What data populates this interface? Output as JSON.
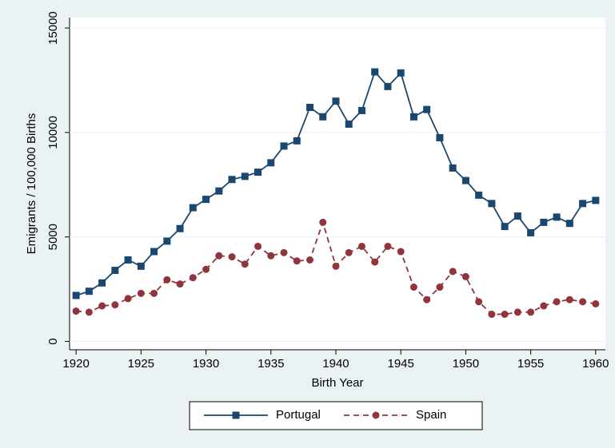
{
  "chart_data": {
    "type": "line",
    "x_label": "Birth Year",
    "y_label": "Emigrants / 100,000 Births",
    "x": [
      1920,
      1921,
      1922,
      1923,
      1924,
      1925,
      1926,
      1927,
      1928,
      1929,
      1930,
      1931,
      1932,
      1933,
      1934,
      1935,
      1936,
      1937,
      1938,
      1939,
      1940,
      1941,
      1942,
      1943,
      1944,
      1945,
      1946,
      1947,
      1948,
      1949,
      1950,
      1951,
      1952,
      1953,
      1954,
      1955,
      1956,
      1957,
      1958,
      1959,
      1960
    ],
    "series": [
      {
        "name": "Portugal",
        "color": "#1a476f",
        "marker": "square",
        "line_style": "solid",
        "values": [
          2200,
          2400,
          2800,
          3400,
          3900,
          3600,
          4300,
          4800,
          5400,
          6400,
          6800,
          7200,
          7750,
          7900,
          8100,
          8550,
          9350,
          9600,
          11200,
          10750,
          11500,
          10400,
          11050,
          12900,
          12200,
          12850,
          10750,
          11100,
          9750,
          8300,
          7700,
          7000,
          6600,
          5500,
          6000,
          5200,
          5700,
          5950,
          5650,
          6600,
          6750
        ]
      },
      {
        "name": "Spain",
        "color": "#90353b",
        "marker": "circle",
        "line_style": "dashed",
        "values": [
          1450,
          1400,
          1700,
          1750,
          2050,
          2300,
          2300,
          2950,
          2750,
          3050,
          3450,
          4100,
          4050,
          3700,
          4550,
          4100,
          4250,
          3850,
          3900,
          5700,
          3600,
          4250,
          4550,
          3800,
          4550,
          4300,
          2600,
          2000,
          2600,
          3350,
          3100,
          1900,
          1300,
          1300,
          1400,
          1400,
          1700,
          1900,
          2000,
          1900,
          1800
        ]
      }
    ],
    "xlim": [
      1919.5,
      1960.75
    ],
    "xticks": [
      1920,
      1925,
      1930,
      1935,
      1940,
      1945,
      1950,
      1955,
      1960
    ],
    "ylim": [
      -400,
      15500
    ],
    "yticks": [
      0,
      5000,
      10000,
      15000
    ],
    "grid": true,
    "legend": "bottom"
  }
}
